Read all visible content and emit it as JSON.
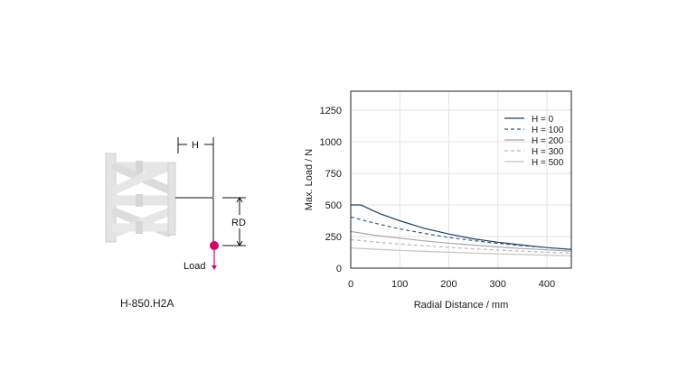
{
  "diagram": {
    "h_label": "H",
    "rd_label": "RD",
    "load_label": "Load",
    "model_label": "H-850.H2A",
    "colors": {
      "frame": "#e3e3e3",
      "frame_edge": "#cfcfcf",
      "load_point": "#d4006e",
      "dimension": "#111111"
    }
  },
  "chart_data": {
    "type": "line",
    "title": "",
    "xlabel": "Radial Distance / mm",
    "ylabel": "Max. Load / N",
    "xlim": [
      0,
      450
    ],
    "ylim": [
      0,
      1400
    ],
    "xticks": [
      0,
      100,
      200,
      300,
      400
    ],
    "yticks": [
      0,
      250,
      500,
      750,
      1000,
      1250
    ],
    "grid": true,
    "legend": "top-right",
    "series": [
      {
        "name": "H = 0",
        "color": "#1f3f63",
        "dash": "solid",
        "x": [
          0,
          20,
          25,
          40,
          60,
          100,
          150,
          200,
          250,
          300,
          350,
          400,
          450
        ],
        "y": [
          500,
          500,
          492,
          465,
          430,
          375,
          315,
          270,
          232,
          205,
          183,
          163,
          148
        ]
      },
      {
        "name": "H = 100",
        "color": "#2f5f8a",
        "dash": "dashed",
        "x": [
          0,
          50,
          100,
          150,
          200,
          250,
          300,
          350,
          400,
          450
        ],
        "y": [
          405,
          355,
          310,
          275,
          243,
          218,
          196,
          178,
          163,
          150
        ]
      },
      {
        "name": "H = 200",
        "color": "#a8a8a8",
        "dash": "solid",
        "x": [
          0,
          50,
          100,
          150,
          200,
          250,
          300,
          350,
          400,
          450
        ],
        "y": [
          290,
          260,
          237,
          216,
          198,
          182,
          168,
          155,
          145,
          135
        ]
      },
      {
        "name": "H = 300",
        "color": "#b8b8b8",
        "dash": "dashed",
        "x": [
          0,
          50,
          100,
          150,
          200,
          250,
          300,
          350,
          400,
          450
        ],
        "y": [
          225,
          207,
          191,
          177,
          164,
          153,
          143,
          134,
          126,
          119
        ]
      },
      {
        "name": "H = 500",
        "color": "#c4c4c4",
        "dash": "solid",
        "x": [
          0,
          50,
          100,
          150,
          200,
          250,
          300,
          350,
          400,
          450
        ],
        "y": [
          160,
          150,
          141,
          133,
          126,
          119,
          113,
          108,
          103,
          98
        ]
      }
    ]
  }
}
